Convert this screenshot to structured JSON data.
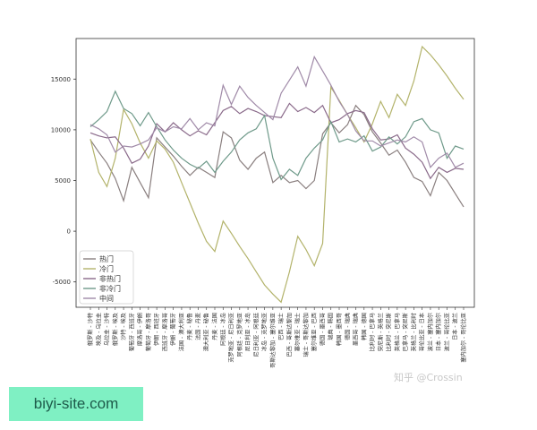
{
  "chart_data": {
    "type": "line",
    "title": "",
    "xlabel": "",
    "ylabel": "",
    "ylim": [
      -7500,
      19000
    ],
    "yticks": [
      -5000,
      0,
      5000,
      10000,
      15000
    ],
    "grid": false,
    "legend_position": "bottom-left",
    "categories": [
      "俄罗斯 - 沙特",
      "埃及 - 乌拉圭",
      "乌拉圭 - 沙特",
      "俄罗斯 - 埃及",
      "沙特 - 埃及",
      "葡萄牙 - 西班牙",
      "摩洛哥 - 伊朗",
      "葡萄牙 - 摩洛哥",
      "伊朗 - 西班牙",
      "西班牙 - 摩洛哥",
      "伊朗 - 葡萄牙",
      "法国 - 澳大利亚",
      "丹麦 - 秘鲁",
      "法国 - 丹麦",
      "澳大利亚 - 秘鲁",
      "丹麦 - 法国",
      "阿根廷 - 冰岛",
      "克罗地亚 - 尼日利亚",
      "阿根廷 - 克罗地亚",
      "尼日利亚 - 冰岛",
      "尼日利亚 - 阿根廷",
      "冰岛 - 克罗地亚",
      "哥斯达黎加 - 塞尔维亚",
      "巴西 - 瑞士",
      "巴西 - 哥斯达黎加",
      "塞尔维亚 - 瑞士",
      "瑞士 - 哥斯达黎加",
      "塞尔维亚 - 巴西",
      "德国 - 墨西哥",
      "瑞典 - 韩国",
      "韩国 - 墨西哥",
      "德国 - 瑞典",
      "墨西哥 - 瑞典",
      "韩国 - 德国",
      "比利时 - 巴拿马",
      "突尼斯 - 英格兰",
      "比利时 - 突尼斯",
      "英格兰 - 巴拿马",
      "巴拿马 - 突尼斯",
      "英格兰 - 比利时",
      "哥伦比亚 - 日本",
      "波兰 - 塞内加尔",
      "日本 - 塞内加尔",
      "波兰 - 哥伦比亚",
      "日本 - 波兰",
      "塞内加尔 - 哥伦比亚"
    ],
    "series": [
      {
        "name": "热门",
        "color": "#8a7f7f",
        "values": [
          9000,
          7800,
          6700,
          5200,
          3000,
          6300,
          4800,
          3300,
          9200,
          8300,
          7400,
          6400,
          5500,
          6300,
          5800,
          5300,
          9800,
          9200,
          7000,
          6100,
          7200,
          7800,
          4800,
          5500,
          4800,
          5000,
          4200,
          5000,
          9600,
          10700,
          9700,
          10500,
          12400,
          11500,
          9800,
          8700,
          7500,
          8000,
          6800,
          5300,
          4900,
          3500,
          5800,
          5000,
          3700,
          2400
        ]
      },
      {
        "name": "冷门",
        "color": "#b3b36b",
        "values": [
          9100,
          5800,
          4400,
          7200,
          12000,
          10600,
          8700,
          7200,
          8900,
          8100,
          6800,
          4800,
          2800,
          800,
          -1000,
          -2000,
          1000,
          -200,
          -1500,
          -2700,
          -4000,
          -5300,
          -6200,
          -7000,
          -4000,
          -500,
          -1800,
          -3400,
          -1200,
          14200,
          12900,
          11500,
          10200,
          8800,
          10600,
          12800,
          11200,
          13500,
          12400,
          14800,
          18200,
          17400,
          16400,
          15300,
          14100,
          13000
        ]
      },
      {
        "name": "非热门",
        "color": "#8a6a8a",
        "values": [
          9700,
          9400,
          9200,
          9300,
          8200,
          6700,
          7100,
          8400,
          10600,
          9800,
          10700,
          10000,
          9400,
          9900,
          9500,
          10700,
          11900,
          12300,
          11600,
          12100,
          11800,
          11400,
          11300,
          11200,
          12600,
          11800,
          12200,
          11700,
          12400,
          10700,
          11000,
          11600,
          11900,
          11700,
          10100,
          9000,
          9100,
          9500,
          8200,
          7600,
          6800,
          5200,
          6300,
          5800,
          6200,
          6100
        ]
      },
      {
        "name": "非冷门",
        "color": "#6f9a8a",
        "values": [
          10300,
          11000,
          11800,
          13800,
          12100,
          11600,
          10400,
          11700,
          10300,
          9000,
          8000,
          7200,
          6600,
          6200,
          6900,
          5800,
          6900,
          7800,
          9000,
          9700,
          10100,
          11400,
          7200,
          5100,
          6100,
          5500,
          7200,
          8200,
          9000,
          10800,
          8800,
          9100,
          8800,
          9400,
          7900,
          8300,
          9300,
          8600,
          9300,
          10800,
          11100,
          10000,
          9700,
          7200,
          8400,
          8100
        ]
      },
      {
        "name": "中间",
        "color": "#a08aa8",
        "values": [
          10500,
          10100,
          9500,
          7800,
          8400,
          8300,
          8600,
          9000,
          10200,
          9800,
          10300,
          10100,
          11100,
          10000,
          10700,
          10400,
          14400,
          12500,
          14300,
          13200,
          12400,
          11700,
          11000,
          13600,
          14900,
          16200,
          14300,
          17200,
          15800,
          14400,
          12800,
          11500,
          9900,
          8900,
          8900,
          8400,
          8700,
          9000,
          8800,
          9300,
          8800,
          6300,
          7200,
          7700,
          6300,
          6700
        ]
      }
    ]
  },
  "watermark": {
    "text": "知乎 @Crossin"
  },
  "badge": {
    "text": "biyi-site.com"
  }
}
